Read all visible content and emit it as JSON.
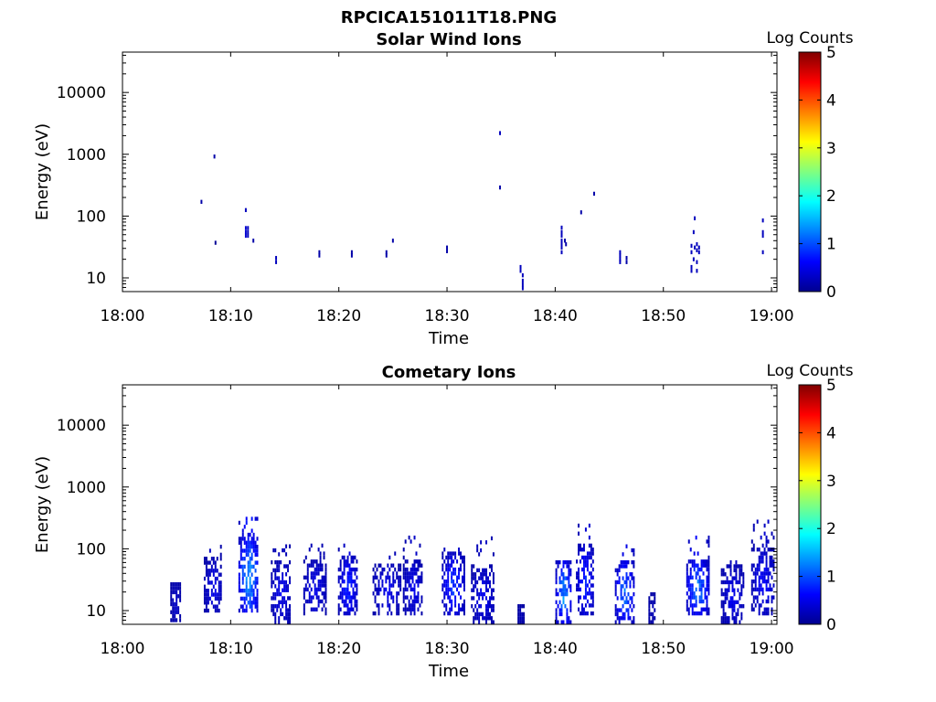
{
  "figure_title": "RPCICA151011T18.PNG",
  "chart_data": [
    {
      "type": "heatmap",
      "title": "Solar Wind Ions",
      "xlabel": "Time",
      "ylabel": "Energy (eV)",
      "x_ticks": [
        "18:00",
        "18:10",
        "18:20",
        "18:30",
        "18:40",
        "18:50",
        "19:00"
      ],
      "x_tick_minutes": [
        0,
        10,
        20,
        30,
        40,
        50,
        60
      ],
      "xlim_minutes": [
        0,
        60.5
      ],
      "y_scale": "log",
      "ylim": [
        6,
        45000
      ],
      "y_ticks": [
        "10",
        "100",
        "1000",
        "10000"
      ],
      "y_tick_values": [
        10,
        100,
        1000,
        10000
      ],
      "colorbar": {
        "label": "Log Counts",
        "ticks": [
          "0",
          "1",
          "2",
          "3",
          "4",
          "5"
        ],
        "range": [
          0,
          5
        ],
        "colormap": "jet"
      },
      "points": [
        [
          7.3,
          170,
          0.2
        ],
        [
          8.5,
          920,
          0.2
        ],
        [
          8.6,
          37,
          0.1
        ],
        [
          11.4,
          125,
          0.3
        ],
        [
          11.4,
          64,
          0.4
        ],
        [
          11.4,
          55,
          0.4
        ],
        [
          11.4,
          48,
          0.4
        ],
        [
          11.6,
          64,
          0.3
        ],
        [
          11.6,
          55,
          0.3
        ],
        [
          11.6,
          48,
          0.3
        ],
        [
          12.1,
          40,
          0.2
        ],
        [
          14.2,
          21,
          0.3
        ],
        [
          14.2,
          18,
          0.3
        ],
        [
          18.2,
          26,
          0.2
        ],
        [
          18.2,
          23,
          0.2
        ],
        [
          21.2,
          26,
          0.2
        ],
        [
          21.2,
          23,
          0.2
        ],
        [
          24.4,
          26,
          0.2
        ],
        [
          24.4,
          23,
          0.2
        ],
        [
          25.0,
          40,
          0.2
        ],
        [
          30.0,
          31,
          0.2
        ],
        [
          30.0,
          27,
          0.2
        ],
        [
          34.9,
          2200,
          0.3
        ],
        [
          34.9,
          290,
          0.2
        ],
        [
          36.8,
          15,
          0.3
        ],
        [
          36.8,
          13,
          0.3
        ],
        [
          37.0,
          11,
          0.3
        ],
        [
          37.0,
          9,
          0.3
        ],
        [
          37.0,
          7.8,
          0.3
        ],
        [
          37.0,
          6.8,
          0.3
        ],
        [
          40.6,
          65,
          0.3
        ],
        [
          40.6,
          55,
          0.3
        ],
        [
          40.6,
          48,
          0.3
        ],
        [
          40.6,
          40,
          0.3
        ],
        [
          40.6,
          35,
          0.3
        ],
        [
          40.6,
          31,
          0.3
        ],
        [
          40.6,
          26,
          0.3
        ],
        [
          40.9,
          40,
          0.2
        ],
        [
          41.0,
          35,
          0.2
        ],
        [
          42.4,
          115,
          0.2
        ],
        [
          43.6,
          230,
          0.2
        ],
        [
          46.0,
          26,
          0.3
        ],
        [
          46.0,
          23,
          0.3
        ],
        [
          46.0,
          20,
          0.3
        ],
        [
          46.0,
          18,
          0.3
        ],
        [
          46.6,
          21,
          0.2
        ],
        [
          46.6,
          18,
          0.2
        ],
        [
          52.8,
          55,
          0.3
        ],
        [
          52.9,
          92,
          0.3
        ],
        [
          52.6,
          33,
          0.3
        ],
        [
          52.6,
          26,
          0.3
        ],
        [
          52.6,
          15,
          0.3
        ],
        [
          52.6,
          13,
          0.3
        ],
        [
          52.9,
          31,
          0.3
        ],
        [
          53.1,
          35,
          0.3
        ],
        [
          53.1,
          28,
          0.3
        ],
        [
          53.3,
          31,
          0.3
        ],
        [
          53.3,
          26,
          0.3
        ],
        [
          53.1,
          18,
          0.3
        ],
        [
          53.1,
          13,
          0.3
        ],
        [
          52.8,
          20,
          0.3
        ],
        [
          59.2,
          85,
          0.3
        ],
        [
          59.2,
          55,
          0.3
        ],
        [
          59.2,
          48,
          0.3
        ],
        [
          59.2,
          26,
          0.3
        ]
      ]
    },
    {
      "type": "heatmap",
      "title": "Cometary Ions",
      "xlabel": "Time",
      "ylabel": "Energy (eV)",
      "x_ticks": [
        "18:00",
        "18:10",
        "18:20",
        "18:30",
        "18:40",
        "18:50",
        "19:00"
      ],
      "x_tick_minutes": [
        0,
        10,
        20,
        30,
        40,
        50,
        60
      ],
      "xlim_minutes": [
        0,
        60.5
      ],
      "y_scale": "log",
      "ylim": [
        6,
        45000
      ],
      "y_ticks": [
        "10",
        "100",
        "1000",
        "10000"
      ],
      "y_tick_values": [
        10,
        100,
        1000,
        10000
      ],
      "colorbar": {
        "label": "Log Counts",
        "ticks": [
          "0",
          "1",
          "2",
          "3",
          "4",
          "5"
        ],
        "range": [
          0,
          5
        ],
        "colormap": "jet"
      },
      "bursts": [
        {
          "t0": 4.5,
          "t1": 5.4,
          "emin": 7,
          "emax": 28,
          "peak": 0.4,
          "top": 35,
          "density": 0.75
        },
        {
          "t0": 7.6,
          "t1": 9.2,
          "emin": 10,
          "emax": 70,
          "peak": 0.6,
          "top": 120,
          "density": 0.55
        },
        {
          "t0": 10.8,
          "t1": 12.6,
          "emin": 10,
          "emax": 170,
          "peak": 1.7,
          "top": 400,
          "density": 0.6
        },
        {
          "t0": 13.8,
          "t1": 15.6,
          "emin": 6.5,
          "emax": 70,
          "peak": 0.6,
          "top": 120,
          "density": 0.55
        },
        {
          "t0": 16.8,
          "t1": 18.8,
          "emin": 9,
          "emax": 70,
          "peak": 0.6,
          "top": 120,
          "density": 0.55
        },
        {
          "t0": 20.0,
          "t1": 21.8,
          "emin": 9,
          "emax": 80,
          "peak": 0.9,
          "top": 130,
          "density": 0.55
        },
        {
          "t0": 23.2,
          "t1": 25.8,
          "emin": 9,
          "emax": 60,
          "peak": 0.6,
          "top": 90,
          "density": 0.5
        },
        {
          "t0": 26.0,
          "t1": 27.8,
          "emin": 9,
          "emax": 70,
          "peak": 0.6,
          "top": 170,
          "density": 0.55
        },
        {
          "t0": 29.6,
          "t1": 31.6,
          "emin": 9,
          "emax": 85,
          "peak": 1.0,
          "top": 130,
          "density": 0.6
        },
        {
          "t0": 32.3,
          "t1": 34.4,
          "emin": 6.5,
          "emax": 55,
          "peak": 0.6,
          "top": 170,
          "density": 0.55
        },
        {
          "t0": 36.6,
          "t1": 37.1,
          "emin": 6.5,
          "emax": 12,
          "peak": 0.3,
          "top": 12,
          "density": 0.9
        },
        {
          "t0": 40.1,
          "t1": 41.5,
          "emin": 6.5,
          "emax": 70,
          "peak": 1.5,
          "top": 130,
          "density": 0.55
        },
        {
          "t0": 42.0,
          "t1": 43.6,
          "emin": 9,
          "emax": 130,
          "peak": 0.9,
          "top": 260,
          "density": 0.6
        },
        {
          "t0": 45.6,
          "t1": 47.3,
          "emin": 6.5,
          "emax": 70,
          "peak": 1.3,
          "top": 110,
          "density": 0.55
        },
        {
          "t0": 48.7,
          "t1": 49.3,
          "emin": 6.5,
          "emax": 20,
          "peak": 0.3,
          "top": 20,
          "density": 0.7
        },
        {
          "t0": 52.2,
          "t1": 54.2,
          "emin": 9,
          "emax": 70,
          "peak": 1.4,
          "top": 160,
          "density": 0.6
        },
        {
          "t0": 55.4,
          "t1": 57.5,
          "emin": 6.5,
          "emax": 55,
          "peak": 0.6,
          "top": 70,
          "density": 0.55
        },
        {
          "t0": 58.2,
          "t1": 60.3,
          "emin": 9,
          "emax": 110,
          "peak": 0.7,
          "top": 280,
          "density": 0.6
        }
      ]
    }
  ]
}
